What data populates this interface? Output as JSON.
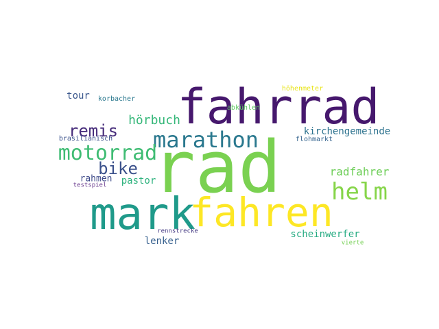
{
  "words": [
    {
      "text": "rad",
      "color": "#7ad151"
    },
    {
      "text": "fahrrad",
      "color": "#46186d"
    },
    {
      "text": "mark",
      "color": "#1f9a8a"
    },
    {
      "text": "fahren",
      "color": "#fde725"
    },
    {
      "text": "helm",
      "color": "#86d549"
    },
    {
      "text": "marathon",
      "color": "#2a788e"
    },
    {
      "text": "motorrad",
      "color": "#3fbc73"
    },
    {
      "text": "remis",
      "color": "#472d7b"
    },
    {
      "text": "bike",
      "color": "#3b518b"
    },
    {
      "text": "hörbuch",
      "color": "#35b779"
    },
    {
      "text": "radfahrer",
      "color": "#6ece58"
    },
    {
      "text": "kirchengemeinde",
      "color": "#2c728e"
    },
    {
      "text": "pastor",
      "color": "#2db27d"
    },
    {
      "text": "rahmen",
      "color": "#3e4a89"
    },
    {
      "text": "scheinwerfer",
      "color": "#25ab82"
    },
    {
      "text": "lenker",
      "color": "#355f8d"
    },
    {
      "text": "tour",
      "color": "#39568c"
    },
    {
      "text": "korbacher",
      "color": "#2a788e"
    },
    {
      "text": "brasilianisch",
      "color": "#3b528b"
    },
    {
      "text": "testspiel",
      "color": "#6b3d8f"
    },
    {
      "text": "höhenmeter",
      "color": "#e8e419"
    },
    {
      "text": "abkühlen",
      "color": "#5ec962"
    },
    {
      "text": "flohmarkt",
      "color": "#33638d"
    },
    {
      "text": "rennstrecke",
      "color": "#443983"
    },
    {
      "text": "vierte",
      "color": "#75d054"
    }
  ]
}
